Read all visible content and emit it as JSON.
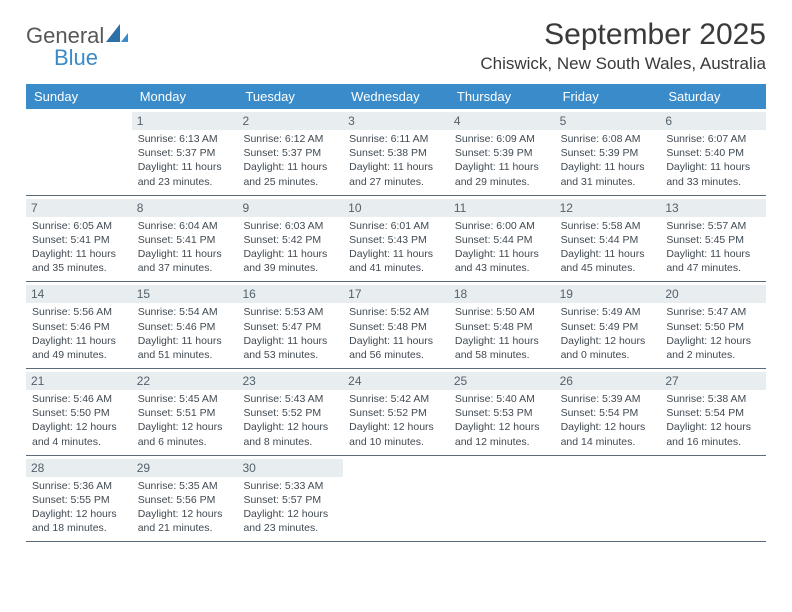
{
  "logo": {
    "text1": "General",
    "text2": "Blue"
  },
  "title": "September 2025",
  "location": "Chiswick, New South Wales, Australia",
  "day_headers": [
    "Sunday",
    "Monday",
    "Tuesday",
    "Wednesday",
    "Thursday",
    "Friday",
    "Saturday"
  ],
  "colors": {
    "header_bar": "#3a8bc9",
    "daynum_bg": "#e8edf0",
    "border": "#5a6a78",
    "title_text": "#3a3a3a",
    "body_text": "#404a52"
  },
  "weeks": [
    [
      {
        "n": "",
        "sr": "",
        "ss": "",
        "dl1": "",
        "dl2": ""
      },
      {
        "n": "1",
        "sr": "Sunrise: 6:13 AM",
        "ss": "Sunset: 5:37 PM",
        "dl1": "Daylight: 11 hours",
        "dl2": "and 23 minutes."
      },
      {
        "n": "2",
        "sr": "Sunrise: 6:12 AM",
        "ss": "Sunset: 5:37 PM",
        "dl1": "Daylight: 11 hours",
        "dl2": "and 25 minutes."
      },
      {
        "n": "3",
        "sr": "Sunrise: 6:11 AM",
        "ss": "Sunset: 5:38 PM",
        "dl1": "Daylight: 11 hours",
        "dl2": "and 27 minutes."
      },
      {
        "n": "4",
        "sr": "Sunrise: 6:09 AM",
        "ss": "Sunset: 5:39 PM",
        "dl1": "Daylight: 11 hours",
        "dl2": "and 29 minutes."
      },
      {
        "n": "5",
        "sr": "Sunrise: 6:08 AM",
        "ss": "Sunset: 5:39 PM",
        "dl1": "Daylight: 11 hours",
        "dl2": "and 31 minutes."
      },
      {
        "n": "6",
        "sr": "Sunrise: 6:07 AM",
        "ss": "Sunset: 5:40 PM",
        "dl1": "Daylight: 11 hours",
        "dl2": "and 33 minutes."
      }
    ],
    [
      {
        "n": "7",
        "sr": "Sunrise: 6:05 AM",
        "ss": "Sunset: 5:41 PM",
        "dl1": "Daylight: 11 hours",
        "dl2": "and 35 minutes."
      },
      {
        "n": "8",
        "sr": "Sunrise: 6:04 AM",
        "ss": "Sunset: 5:41 PM",
        "dl1": "Daylight: 11 hours",
        "dl2": "and 37 minutes."
      },
      {
        "n": "9",
        "sr": "Sunrise: 6:03 AM",
        "ss": "Sunset: 5:42 PM",
        "dl1": "Daylight: 11 hours",
        "dl2": "and 39 minutes."
      },
      {
        "n": "10",
        "sr": "Sunrise: 6:01 AM",
        "ss": "Sunset: 5:43 PM",
        "dl1": "Daylight: 11 hours",
        "dl2": "and 41 minutes."
      },
      {
        "n": "11",
        "sr": "Sunrise: 6:00 AM",
        "ss": "Sunset: 5:44 PM",
        "dl1": "Daylight: 11 hours",
        "dl2": "and 43 minutes."
      },
      {
        "n": "12",
        "sr": "Sunrise: 5:58 AM",
        "ss": "Sunset: 5:44 PM",
        "dl1": "Daylight: 11 hours",
        "dl2": "and 45 minutes."
      },
      {
        "n": "13",
        "sr": "Sunrise: 5:57 AM",
        "ss": "Sunset: 5:45 PM",
        "dl1": "Daylight: 11 hours",
        "dl2": "and 47 minutes."
      }
    ],
    [
      {
        "n": "14",
        "sr": "Sunrise: 5:56 AM",
        "ss": "Sunset: 5:46 PM",
        "dl1": "Daylight: 11 hours",
        "dl2": "and 49 minutes."
      },
      {
        "n": "15",
        "sr": "Sunrise: 5:54 AM",
        "ss": "Sunset: 5:46 PM",
        "dl1": "Daylight: 11 hours",
        "dl2": "and 51 minutes."
      },
      {
        "n": "16",
        "sr": "Sunrise: 5:53 AM",
        "ss": "Sunset: 5:47 PM",
        "dl1": "Daylight: 11 hours",
        "dl2": "and 53 minutes."
      },
      {
        "n": "17",
        "sr": "Sunrise: 5:52 AM",
        "ss": "Sunset: 5:48 PM",
        "dl1": "Daylight: 11 hours",
        "dl2": "and 56 minutes."
      },
      {
        "n": "18",
        "sr": "Sunrise: 5:50 AM",
        "ss": "Sunset: 5:48 PM",
        "dl1": "Daylight: 11 hours",
        "dl2": "and 58 minutes."
      },
      {
        "n": "19",
        "sr": "Sunrise: 5:49 AM",
        "ss": "Sunset: 5:49 PM",
        "dl1": "Daylight: 12 hours",
        "dl2": "and 0 minutes."
      },
      {
        "n": "20",
        "sr": "Sunrise: 5:47 AM",
        "ss": "Sunset: 5:50 PM",
        "dl1": "Daylight: 12 hours",
        "dl2": "and 2 minutes."
      }
    ],
    [
      {
        "n": "21",
        "sr": "Sunrise: 5:46 AM",
        "ss": "Sunset: 5:50 PM",
        "dl1": "Daylight: 12 hours",
        "dl2": "and 4 minutes."
      },
      {
        "n": "22",
        "sr": "Sunrise: 5:45 AM",
        "ss": "Sunset: 5:51 PM",
        "dl1": "Daylight: 12 hours",
        "dl2": "and 6 minutes."
      },
      {
        "n": "23",
        "sr": "Sunrise: 5:43 AM",
        "ss": "Sunset: 5:52 PM",
        "dl1": "Daylight: 12 hours",
        "dl2": "and 8 minutes."
      },
      {
        "n": "24",
        "sr": "Sunrise: 5:42 AM",
        "ss": "Sunset: 5:52 PM",
        "dl1": "Daylight: 12 hours",
        "dl2": "and 10 minutes."
      },
      {
        "n": "25",
        "sr": "Sunrise: 5:40 AM",
        "ss": "Sunset: 5:53 PM",
        "dl1": "Daylight: 12 hours",
        "dl2": "and 12 minutes."
      },
      {
        "n": "26",
        "sr": "Sunrise: 5:39 AM",
        "ss": "Sunset: 5:54 PM",
        "dl1": "Daylight: 12 hours",
        "dl2": "and 14 minutes."
      },
      {
        "n": "27",
        "sr": "Sunrise: 5:38 AM",
        "ss": "Sunset: 5:54 PM",
        "dl1": "Daylight: 12 hours",
        "dl2": "and 16 minutes."
      }
    ],
    [
      {
        "n": "28",
        "sr": "Sunrise: 5:36 AM",
        "ss": "Sunset: 5:55 PM",
        "dl1": "Daylight: 12 hours",
        "dl2": "and 18 minutes."
      },
      {
        "n": "29",
        "sr": "Sunrise: 5:35 AM",
        "ss": "Sunset: 5:56 PM",
        "dl1": "Daylight: 12 hours",
        "dl2": "and 21 minutes."
      },
      {
        "n": "30",
        "sr": "Sunrise: 5:33 AM",
        "ss": "Sunset: 5:57 PM",
        "dl1": "Daylight: 12 hours",
        "dl2": "and 23 minutes."
      },
      {
        "n": "",
        "sr": "",
        "ss": "",
        "dl1": "",
        "dl2": ""
      },
      {
        "n": "",
        "sr": "",
        "ss": "",
        "dl1": "",
        "dl2": ""
      },
      {
        "n": "",
        "sr": "",
        "ss": "",
        "dl1": "",
        "dl2": ""
      },
      {
        "n": "",
        "sr": "",
        "ss": "",
        "dl1": "",
        "dl2": ""
      }
    ]
  ]
}
